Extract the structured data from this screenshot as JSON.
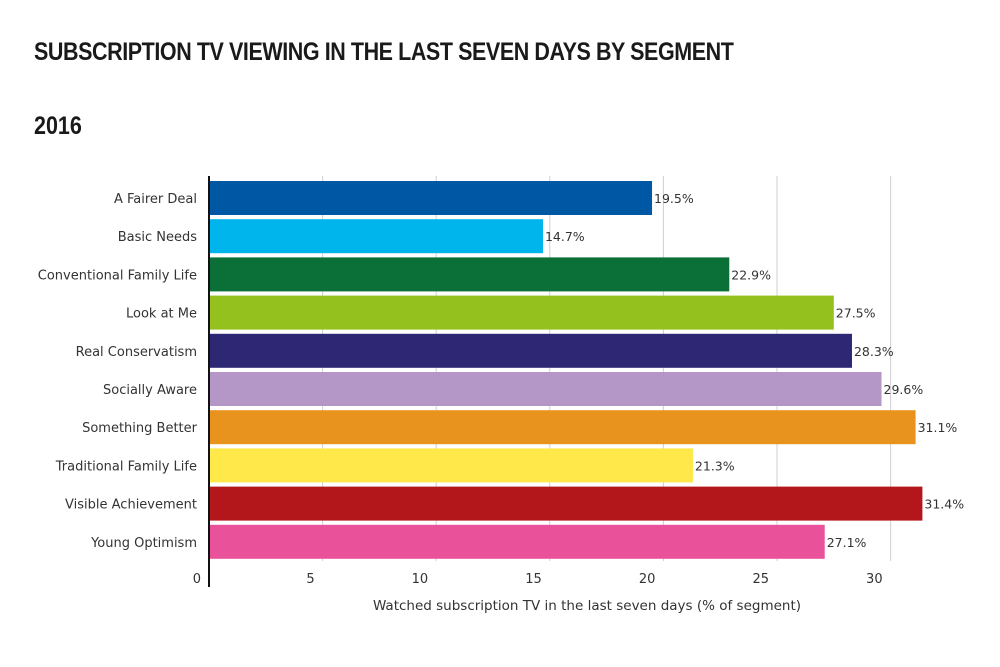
{
  "chart_data": {
    "type": "bar",
    "orientation": "horizontal",
    "title": "SUBSCRIPTION TV VIEWING IN THE LAST SEVEN DAYS BY SEGMENT",
    "subtitle": "2016",
    "xlabel": "Watched subscription TV in the last seven days (% of segment)",
    "ylabel": "",
    "xlim": [
      0,
      32
    ],
    "xticks": [
      0,
      5,
      10,
      15,
      20,
      25,
      30
    ],
    "grid": true,
    "categories": [
      "A Fairer Deal",
      "Basic Needs",
      "Conventional Family Life",
      "Look at Me",
      "Real Conservatism",
      "Socially Aware",
      "Something Better",
      "Traditional Family Life",
      "Visible Achievement",
      "Young Optimism"
    ],
    "values": [
      19.5,
      14.7,
      22.9,
      27.5,
      28.3,
      29.6,
      31.1,
      21.3,
      31.4,
      27.1
    ],
    "data_labels": [
      "19.5%",
      "14.7%",
      "22.9%",
      "27.5%",
      "28.3%",
      "29.6%",
      "31.1%",
      "21.3%",
      "31.4%",
      "27.1%"
    ],
    "colors": [
      "#0057a4",
      "#00b5ec",
      "#0b6f38",
      "#95c11f",
      "#2e2774",
      "#b497c7",
      "#e9931f",
      "#ffe94a",
      "#b3171b",
      "#e9519a"
    ]
  }
}
